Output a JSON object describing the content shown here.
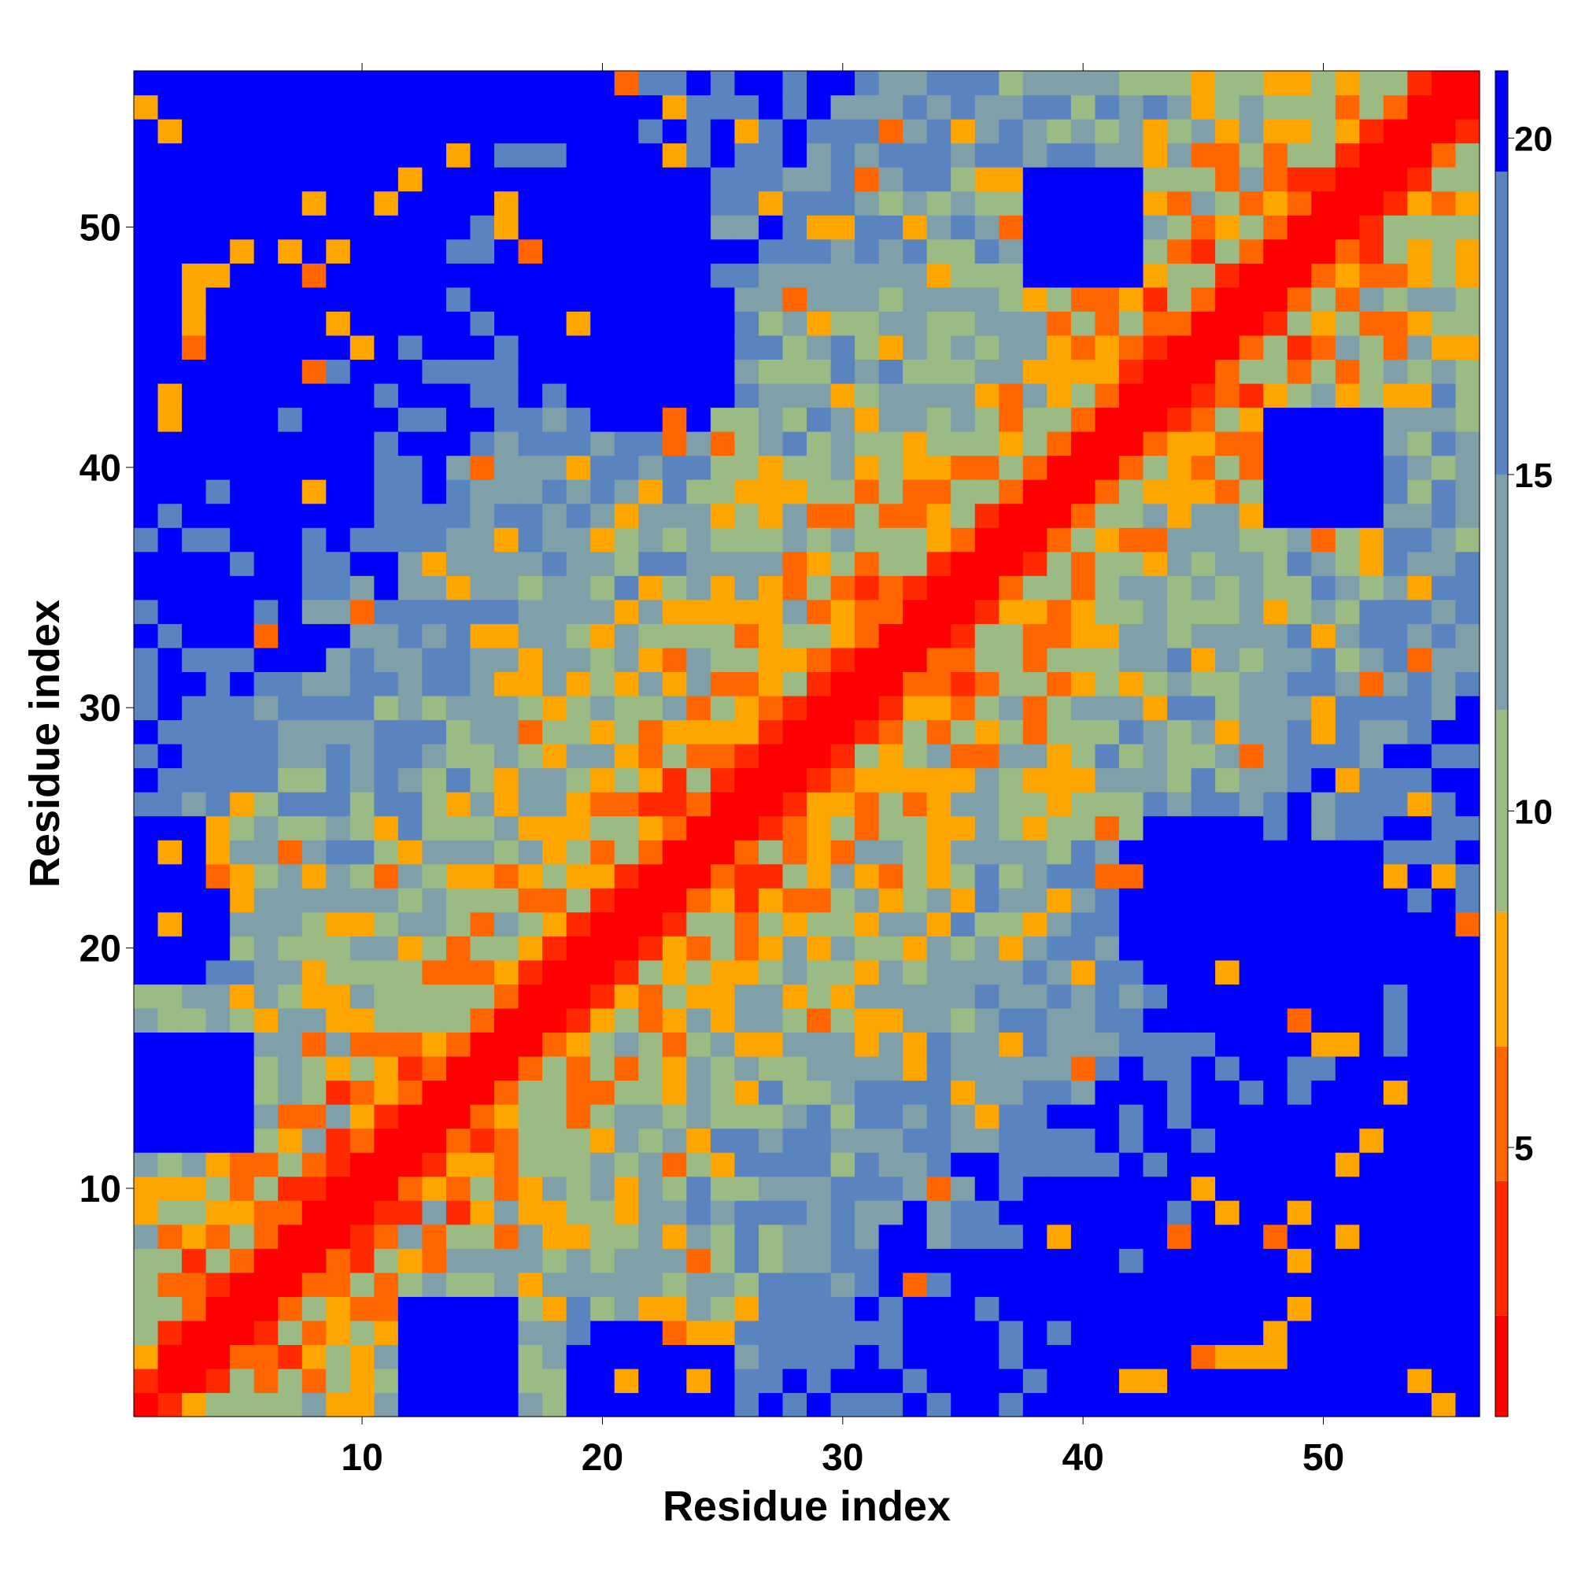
{
  "chart_data": {
    "type": "heatmap",
    "title": "",
    "xlabel": "Residue index",
    "ylabel": "Residue index",
    "n_residues": 56,
    "xlim": [
      0.5,
      56.5
    ],
    "ylim": [
      0.5,
      56.5
    ],
    "x_ticks": [
      10,
      20,
      30,
      40,
      50
    ],
    "y_ticks": [
      10,
      20,
      30,
      40,
      50
    ],
    "colorbar": {
      "ticks": [
        5,
        10,
        15,
        20
      ],
      "range": [
        1,
        21
      ],
      "levels": [
        {
          "max": 2.5,
          "color": "#ff0000"
        },
        {
          "max": 4.5,
          "color": "#ff2a00"
        },
        {
          "max": 6.5,
          "color": "#ff6600"
        },
        {
          "max": 8.5,
          "color": "#ffa500"
        },
        {
          "max": 11.5,
          "color": "#9cbb84"
        },
        {
          "max": 15,
          "color": "#7fa0a8"
        },
        {
          "max": 19.5,
          "color": "#5a84c0"
        },
        {
          "max": 99,
          "color": "#0000ff"
        }
      ]
    },
    "matrix_rule": "symmetric distance map; values increase with |i-j|",
    "sample_cells": [
      {
        "x": 1,
        "y": 1,
        "value": 1
      },
      {
        "x": 2,
        "y": 1,
        "value": 3
      },
      {
        "x": 3,
        "y": 1,
        "value": 7
      },
      {
        "x": 12,
        "y": 1,
        "value": 21
      },
      {
        "x": 21,
        "y": 1,
        "value": 21
      },
      {
        "x": 56,
        "y": 1,
        "value": 21
      },
      {
        "x": 1,
        "y": 56,
        "value": 21
      },
      {
        "x": 56,
        "y": 56,
        "value": 1
      },
      {
        "x": 30,
        "y": 30,
        "value": 1
      },
      {
        "x": 21,
        "y": 50,
        "value": 21
      },
      {
        "x": 50,
        "y": 22,
        "value": 21
      }
    ]
  }
}
